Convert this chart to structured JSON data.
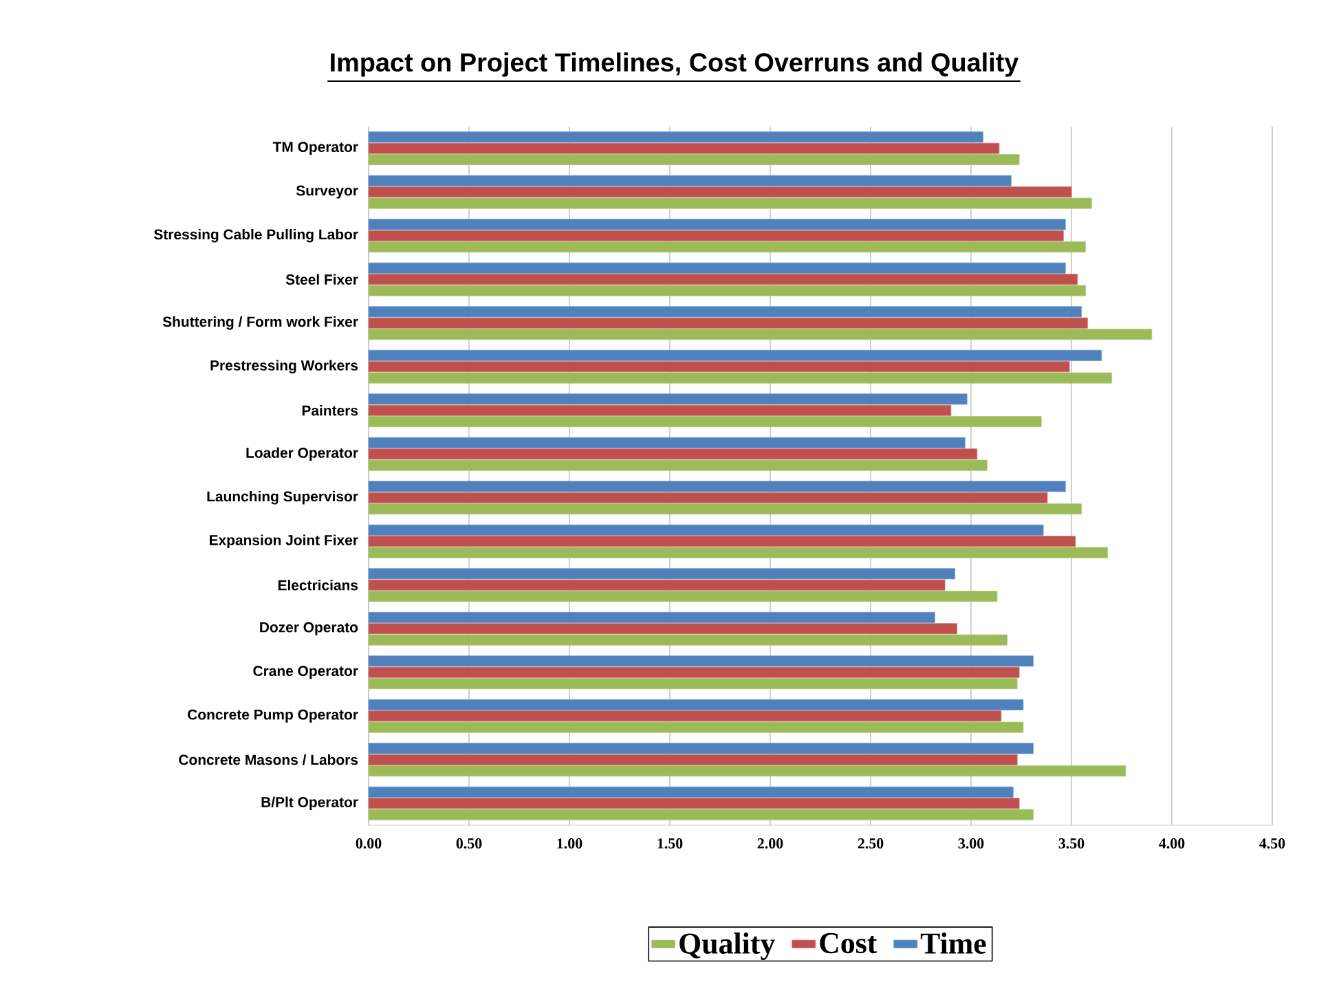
{
  "chart_data": {
    "type": "bar",
    "orientation": "horizontal",
    "title": "Impact on Project Timelines, Cost Overruns and Quality",
    "categories": [
      "TM Operator",
      "Surveyor",
      "Stressing Cable Pulling Labor",
      "Steel Fixer",
      "Shuttering / Form work Fixer",
      "Prestressing Workers",
      "Painters",
      "Loader Operator",
      "Launching Supervisor",
      "Expansion Joint Fixer",
      "Electricians",
      "Dozer Operato",
      "Crane Operator",
      "Concrete Pump Operator",
      "Concrete Masons / Labors",
      "B/Plt Operator"
    ],
    "series": [
      {
        "name": "Quality",
        "color": "#9bbb59",
        "values": [
          3.24,
          3.6,
          3.57,
          3.57,
          3.9,
          3.7,
          3.35,
          3.08,
          3.55,
          3.68,
          3.13,
          3.18,
          3.23,
          3.26,
          3.77,
          3.31
        ]
      },
      {
        "name": "Cost",
        "color": "#c0504d",
        "values": [
          3.14,
          3.5,
          3.46,
          3.53,
          3.58,
          3.49,
          2.9,
          3.03,
          3.38,
          3.52,
          2.87,
          2.93,
          3.24,
          3.15,
          3.23,
          3.24
        ]
      },
      {
        "name": "Time",
        "color": "#4f81bd",
        "values": [
          3.06,
          3.2,
          3.47,
          3.47,
          3.55,
          3.65,
          2.98,
          2.97,
          3.47,
          3.36,
          2.92,
          2.82,
          3.31,
          3.26,
          3.31,
          3.21
        ]
      }
    ],
    "xlim": [
      0,
      4.5
    ],
    "xticks": [
      {
        "value": 0,
        "label": "0.00"
      },
      {
        "value": 0.5,
        "label": "0.50"
      },
      {
        "value": 1,
        "label": "1.00"
      },
      {
        "value": 1.5,
        "label": "1.50"
      },
      {
        "value": 2,
        "label": "2.00"
      },
      {
        "value": 2.5,
        "label": "2.50"
      },
      {
        "value": 3,
        "label": "3.00"
      },
      {
        "value": 3.5,
        "label": "3.50"
      },
      {
        "value": 4,
        "label": "4.00"
      },
      {
        "value": 4.5,
        "label": "4.50"
      }
    ],
    "grid": "x",
    "legend": "bottom"
  }
}
